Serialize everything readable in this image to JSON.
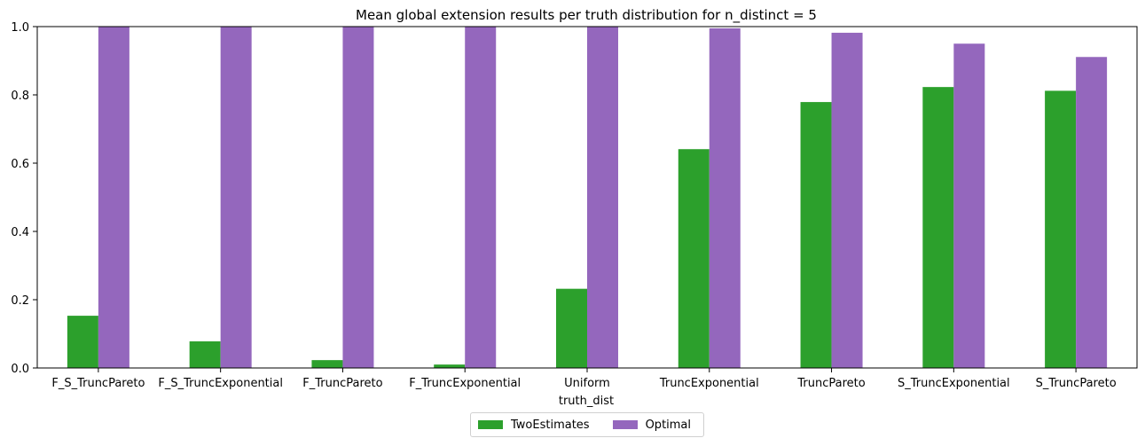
{
  "chart_data": {
    "type": "bar",
    "title": "Mean global extension results per truth distribution for n_distinct = 5",
    "xlabel": "truth_dist",
    "ylabel": "",
    "ylim": [
      0,
      1.0
    ],
    "yticks": [
      0.0,
      0.2,
      0.4,
      0.6,
      0.8,
      1.0
    ],
    "ytick_labels": [
      "0.0",
      "0.2",
      "0.4",
      "0.6",
      "0.8",
      "1.0"
    ],
    "categories": [
      "F_S_TruncPareto",
      "F_S_TruncExponential",
      "F_TruncPareto",
      "F_TruncExponential",
      "Uniform",
      "TruncExponential",
      "TruncPareto",
      "S_TruncExponential",
      "S_TruncPareto"
    ],
    "series": [
      {
        "name": "TwoEstimates",
        "color": "#2ca02c",
        "values": [
          0.153,
          0.078,
          0.023,
          0.01,
          0.232,
          0.641,
          0.779,
          0.823,
          0.812
        ]
      },
      {
        "name": "Optimal",
        "color": "#9467bd",
        "values": [
          1.0,
          1.0,
          1.0,
          1.0,
          1.0,
          0.995,
          0.982,
          0.95,
          0.911
        ]
      }
    ],
    "grid": false,
    "legend_position": "bottom-center"
  }
}
